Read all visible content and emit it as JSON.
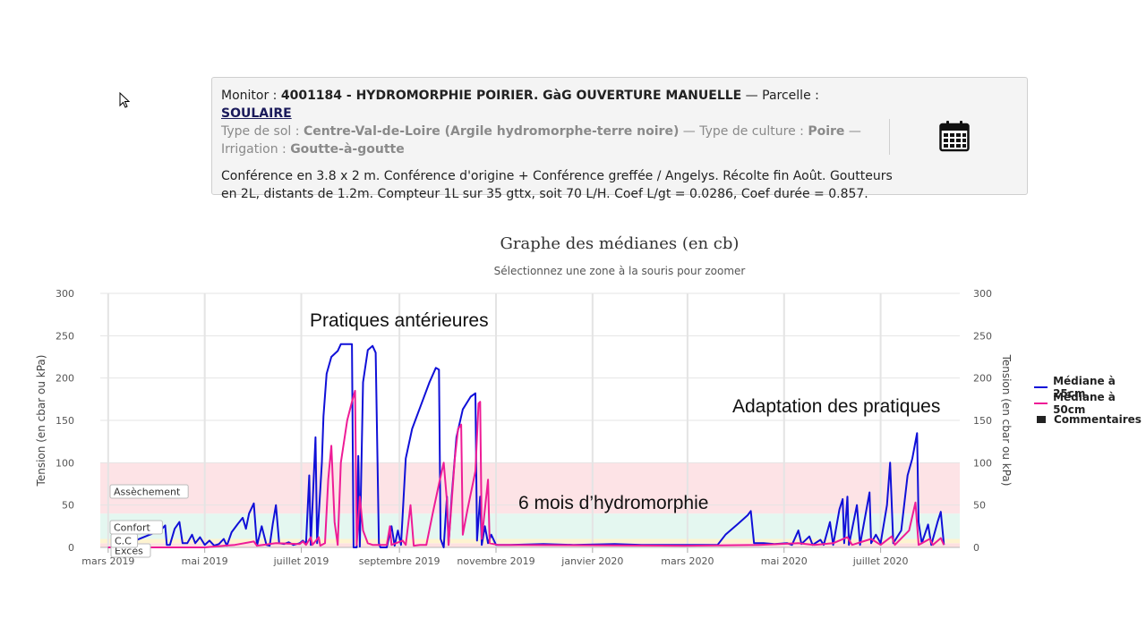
{
  "monitor": {
    "monitor_label": "Monitor : ",
    "monitor_value": "4001184 - HYDROMORPHIE POIRIER. GàG OUVERTURE MANUELLE",
    "parcel_label": " — Parcelle : ",
    "parcel_value": "SOULAIRE",
    "soil_label": "Type de sol : ",
    "soil_value": "Centre-Val-de-Loire (Argile hydromorphe-terre noire)",
    "crop_label": " — Type de culture : ",
    "crop_value": "Poire",
    "irrigation_label": " — Irrigation : ",
    "irrigation_value": "Goutte-à-goutte",
    "description": "Conférence en 3.8 x 2 m. Conférence d'origine + Conférence greffée / Angelys. Récolte fin Août. Goutteurs en 2L, distants de 1.2m. Compteur 1L sur 35 gttx, soit 70 L/H. Coef L/gt = 0.0286, Coef durée = 0.857.",
    "calendar_icon": "calendar-icon"
  },
  "chart_data": {
    "type": "line",
    "title": "Graphe des médianes (en cb)",
    "subtitle": "Sélectionnez une zone à la souris pour zoomer",
    "ylabel": "Tension (en cbar ou kPa)",
    "ylabel_right": "Tension (en cbar ou kPa)",
    "ylim": [
      0,
      300
    ],
    "yticks": [
      0,
      50,
      100,
      150,
      200,
      250,
      300
    ],
    "xlim": [
      "2019-03-01",
      "2020-08-20"
    ],
    "xticks": [
      {
        "date": "2019-03-01",
        "label": "mars 2019"
      },
      {
        "date": "2019-05-01",
        "label": "mai 2019"
      },
      {
        "date": "2019-07-01",
        "label": "juillet 2019"
      },
      {
        "date": "2019-09-01",
        "label": "septembre 2019"
      },
      {
        "date": "2019-11-01",
        "label": "novembre 2019"
      },
      {
        "date": "2020-01-01",
        "label": "janvier 2020"
      },
      {
        "date": "2020-03-01",
        "label": "mars 2020"
      },
      {
        "date": "2020-05-01",
        "label": "mai 2020"
      },
      {
        "date": "2020-07-01",
        "label": "juillet 2020"
      }
    ],
    "grid": true,
    "legend_position": "right",
    "bands": [
      {
        "label": "Excès",
        "from": 0,
        "to": 5,
        "color": "#fde0e0"
      },
      {
        "label": "C.C",
        "from": 5,
        "to": 10,
        "color": "#fdf3d0"
      },
      {
        "label": "Confort",
        "from": 10,
        "to": 40,
        "color": "#e4f7f0"
      },
      {
        "label": "Assèchement",
        "from": 40,
        "to": 100,
        "color": "#fde3e6"
      }
    ],
    "series": [
      {
        "name": "Médiane à 25cm",
        "color": "#1010d8",
        "points": [
          [
            "2019-03-01",
            0
          ],
          [
            "2019-03-14",
            0
          ],
          [
            "2019-03-18",
            8
          ],
          [
            "2019-03-26",
            14
          ],
          [
            "2019-04-03",
            20
          ],
          [
            "2019-04-06",
            26
          ],
          [
            "2019-04-07",
            3
          ],
          [
            "2019-04-09",
            3
          ],
          [
            "2019-04-12",
            22
          ],
          [
            "2019-04-15",
            30
          ],
          [
            "2019-04-17",
            5
          ],
          [
            "2019-04-20",
            5
          ],
          [
            "2019-04-23",
            15
          ],
          [
            "2019-04-25",
            5
          ],
          [
            "2019-04-28",
            12
          ],
          [
            "2019-05-01",
            3
          ],
          [
            "2019-05-04",
            8
          ],
          [
            "2019-05-07",
            2
          ],
          [
            "2019-05-10",
            4
          ],
          [
            "2019-05-13",
            10
          ],
          [
            "2019-05-15",
            2
          ],
          [
            "2019-05-18",
            18
          ],
          [
            "2019-05-22",
            28
          ],
          [
            "2019-05-25",
            35
          ],
          [
            "2019-05-27",
            22
          ],
          [
            "2019-05-29",
            40
          ],
          [
            "2019-06-01",
            52
          ],
          [
            "2019-06-03",
            2
          ],
          [
            "2019-06-06",
            25
          ],
          [
            "2019-06-09",
            3
          ],
          [
            "2019-06-11",
            2
          ],
          [
            "2019-06-13",
            28
          ],
          [
            "2019-06-15",
            50
          ],
          [
            "2019-06-17",
            5
          ],
          [
            "2019-06-20",
            4
          ],
          [
            "2019-06-23",
            6
          ],
          [
            "2019-06-26",
            3
          ],
          [
            "2019-06-30",
            5
          ],
          [
            "2019-07-02",
            8
          ],
          [
            "2019-07-04",
            4
          ],
          [
            "2019-07-06",
            85
          ],
          [
            "2019-07-07",
            3
          ],
          [
            "2019-07-10",
            130
          ],
          [
            "2019-07-11",
            5
          ],
          [
            "2019-07-14",
            100
          ],
          [
            "2019-07-15",
            155
          ],
          [
            "2019-07-17",
            205
          ],
          [
            "2019-07-20",
            225
          ],
          [
            "2019-07-24",
            232
          ],
          [
            "2019-07-26",
            240
          ],
          [
            "2019-08-02",
            240
          ],
          [
            "2019-08-03",
            0
          ],
          [
            "2019-08-05",
            0
          ],
          [
            "2019-08-06",
            108
          ],
          [
            "2019-08-07",
            1
          ],
          [
            "2019-08-09",
            195
          ],
          [
            "2019-08-12",
            233
          ],
          [
            "2019-08-15",
            238
          ],
          [
            "2019-08-17",
            230
          ],
          [
            "2019-08-19",
            5
          ],
          [
            "2019-08-20",
            0
          ],
          [
            "2019-08-24",
            0
          ],
          [
            "2019-08-27",
            25
          ],
          [
            "2019-08-29",
            2
          ],
          [
            "2019-08-31",
            20
          ],
          [
            "2019-09-02",
            3
          ],
          [
            "2019-09-05",
            105
          ],
          [
            "2019-09-09",
            140
          ],
          [
            "2019-09-14",
            165
          ],
          [
            "2019-09-20",
            195
          ],
          [
            "2019-09-24",
            212
          ],
          [
            "2019-09-26",
            210
          ],
          [
            "2019-09-27",
            10
          ],
          [
            "2019-09-29",
            0
          ],
          [
            "2019-10-01",
            60
          ],
          [
            "2019-10-02",
            3
          ],
          [
            "2019-10-04",
            60
          ],
          [
            "2019-10-07",
            130
          ],
          [
            "2019-10-11",
            163
          ],
          [
            "2019-10-16",
            178
          ],
          [
            "2019-10-19",
            182
          ],
          [
            "2019-10-20",
            8
          ],
          [
            "2019-10-22",
            60
          ],
          [
            "2019-10-23",
            3
          ],
          [
            "2019-10-25",
            25
          ],
          [
            "2019-10-27",
            5
          ],
          [
            "2019-10-29",
            15
          ],
          [
            "2019-11-01",
            3
          ],
          [
            "2019-11-10",
            3
          ],
          [
            "2019-12-01",
            4
          ],
          [
            "2019-12-20",
            3
          ],
          [
            "2020-01-15",
            4
          ],
          [
            "2020-02-01",
            3
          ],
          [
            "2020-03-01",
            3
          ],
          [
            "2020-03-20",
            3
          ],
          [
            "2020-03-25",
            15
          ],
          [
            "2020-04-02",
            28
          ],
          [
            "2020-04-08",
            38
          ],
          [
            "2020-04-10",
            43
          ],
          [
            "2020-04-12",
            5
          ],
          [
            "2020-04-18",
            5
          ],
          [
            "2020-04-25",
            4
          ],
          [
            "2020-05-03",
            5
          ],
          [
            "2020-05-06",
            3
          ],
          [
            "2020-05-10",
            20
          ],
          [
            "2020-05-12",
            4
          ],
          [
            "2020-05-17",
            13
          ],
          [
            "2020-05-19",
            3
          ],
          [
            "2020-05-24",
            9
          ],
          [
            "2020-05-26",
            3
          ],
          [
            "2020-05-30",
            30
          ],
          [
            "2020-06-01",
            3
          ],
          [
            "2020-06-05",
            45
          ],
          [
            "2020-06-07",
            57
          ],
          [
            "2020-06-08",
            5
          ],
          [
            "2020-06-10",
            60
          ],
          [
            "2020-06-11",
            3
          ],
          [
            "2020-06-16",
            50
          ],
          [
            "2020-06-18",
            3
          ],
          [
            "2020-06-24",
            65
          ],
          [
            "2020-06-25",
            5
          ],
          [
            "2020-06-28",
            15
          ],
          [
            "2020-07-01",
            5
          ],
          [
            "2020-07-05",
            50
          ],
          [
            "2020-07-07",
            100
          ],
          [
            "2020-07-09",
            5
          ],
          [
            "2020-07-14",
            20
          ],
          [
            "2020-07-18",
            85
          ],
          [
            "2020-07-21",
            105
          ],
          [
            "2020-07-24",
            135
          ],
          [
            "2020-07-25",
            30
          ],
          [
            "2020-07-27",
            5
          ],
          [
            "2020-07-31",
            27
          ],
          [
            "2020-08-02",
            3
          ],
          [
            "2020-08-06",
            30
          ],
          [
            "2020-08-08",
            42
          ],
          [
            "2020-08-10",
            3
          ]
        ]
      },
      {
        "name": "Médiane à 50cm",
        "color": "#ee1c96",
        "points": [
          [
            "2019-03-01",
            0
          ],
          [
            "2019-05-01",
            0
          ],
          [
            "2019-05-20",
            3
          ],
          [
            "2019-06-01",
            7
          ],
          [
            "2019-06-03",
            2
          ],
          [
            "2019-06-15",
            5
          ],
          [
            "2019-06-30",
            4
          ],
          [
            "2019-07-02",
            7
          ],
          [
            "2019-07-04",
            3
          ],
          [
            "2019-07-07",
            12
          ],
          [
            "2019-07-08",
            3
          ],
          [
            "2019-07-12",
            12
          ],
          [
            "2019-07-13",
            2
          ],
          [
            "2019-07-16",
            5
          ],
          [
            "2019-07-18",
            80
          ],
          [
            "2019-07-20",
            120
          ],
          [
            "2019-07-22",
            30
          ],
          [
            "2019-07-24",
            3
          ],
          [
            "2019-07-26",
            100
          ],
          [
            "2019-07-30",
            150
          ],
          [
            "2019-08-02",
            172
          ],
          [
            "2019-08-04",
            185
          ],
          [
            "2019-08-05",
            3
          ],
          [
            "2019-08-07",
            60
          ],
          [
            "2019-08-09",
            20
          ],
          [
            "2019-08-12",
            5
          ],
          [
            "2019-08-15",
            3
          ],
          [
            "2019-08-19",
            3
          ],
          [
            "2019-08-24",
            3
          ],
          [
            "2019-08-26",
            25
          ],
          [
            "2019-08-27",
            3
          ],
          [
            "2019-09-03",
            8
          ],
          [
            "2019-09-05",
            3
          ],
          [
            "2019-09-08",
            50
          ],
          [
            "2019-09-10",
            2
          ],
          [
            "2019-09-14",
            3
          ],
          [
            "2019-09-18",
            3
          ],
          [
            "2019-09-22",
            40
          ],
          [
            "2019-09-26",
            75
          ],
          [
            "2019-09-29",
            100
          ],
          [
            "2019-10-01",
            55
          ],
          [
            "2019-10-02",
            3
          ],
          [
            "2019-10-06",
            105
          ],
          [
            "2019-10-08",
            140
          ],
          [
            "2019-10-10",
            145
          ],
          [
            "2019-10-11",
            15
          ],
          [
            "2019-10-14",
            45
          ],
          [
            "2019-10-19",
            90
          ],
          [
            "2019-10-21",
            170
          ],
          [
            "2019-10-22",
            172
          ],
          [
            "2019-10-23",
            10
          ],
          [
            "2019-10-27",
            80
          ],
          [
            "2019-10-28",
            5
          ],
          [
            "2019-11-02",
            3
          ],
          [
            "2020-03-01",
            2
          ],
          [
            "2020-04-15",
            3
          ],
          [
            "2020-05-10",
            5
          ],
          [
            "2020-05-20",
            3
          ],
          [
            "2020-06-01",
            5
          ],
          [
            "2020-06-10",
            12
          ],
          [
            "2020-06-13",
            3
          ],
          [
            "2020-06-25",
            10
          ],
          [
            "2020-07-01",
            3
          ],
          [
            "2020-07-08",
            13
          ],
          [
            "2020-07-10",
            3
          ],
          [
            "2020-07-19",
            20
          ],
          [
            "2020-07-23",
            53
          ],
          [
            "2020-07-25",
            3
          ],
          [
            "2020-08-01",
            10
          ],
          [
            "2020-08-03",
            3
          ],
          [
            "2020-08-08",
            11
          ],
          [
            "2020-08-10",
            3
          ]
        ]
      }
    ],
    "legend_comments_label": "Commentaires",
    "annotations": [
      "Pratiques antérieures",
      "6 mois d’hydromorphie",
      "Adaptation des pratiques"
    ]
  }
}
